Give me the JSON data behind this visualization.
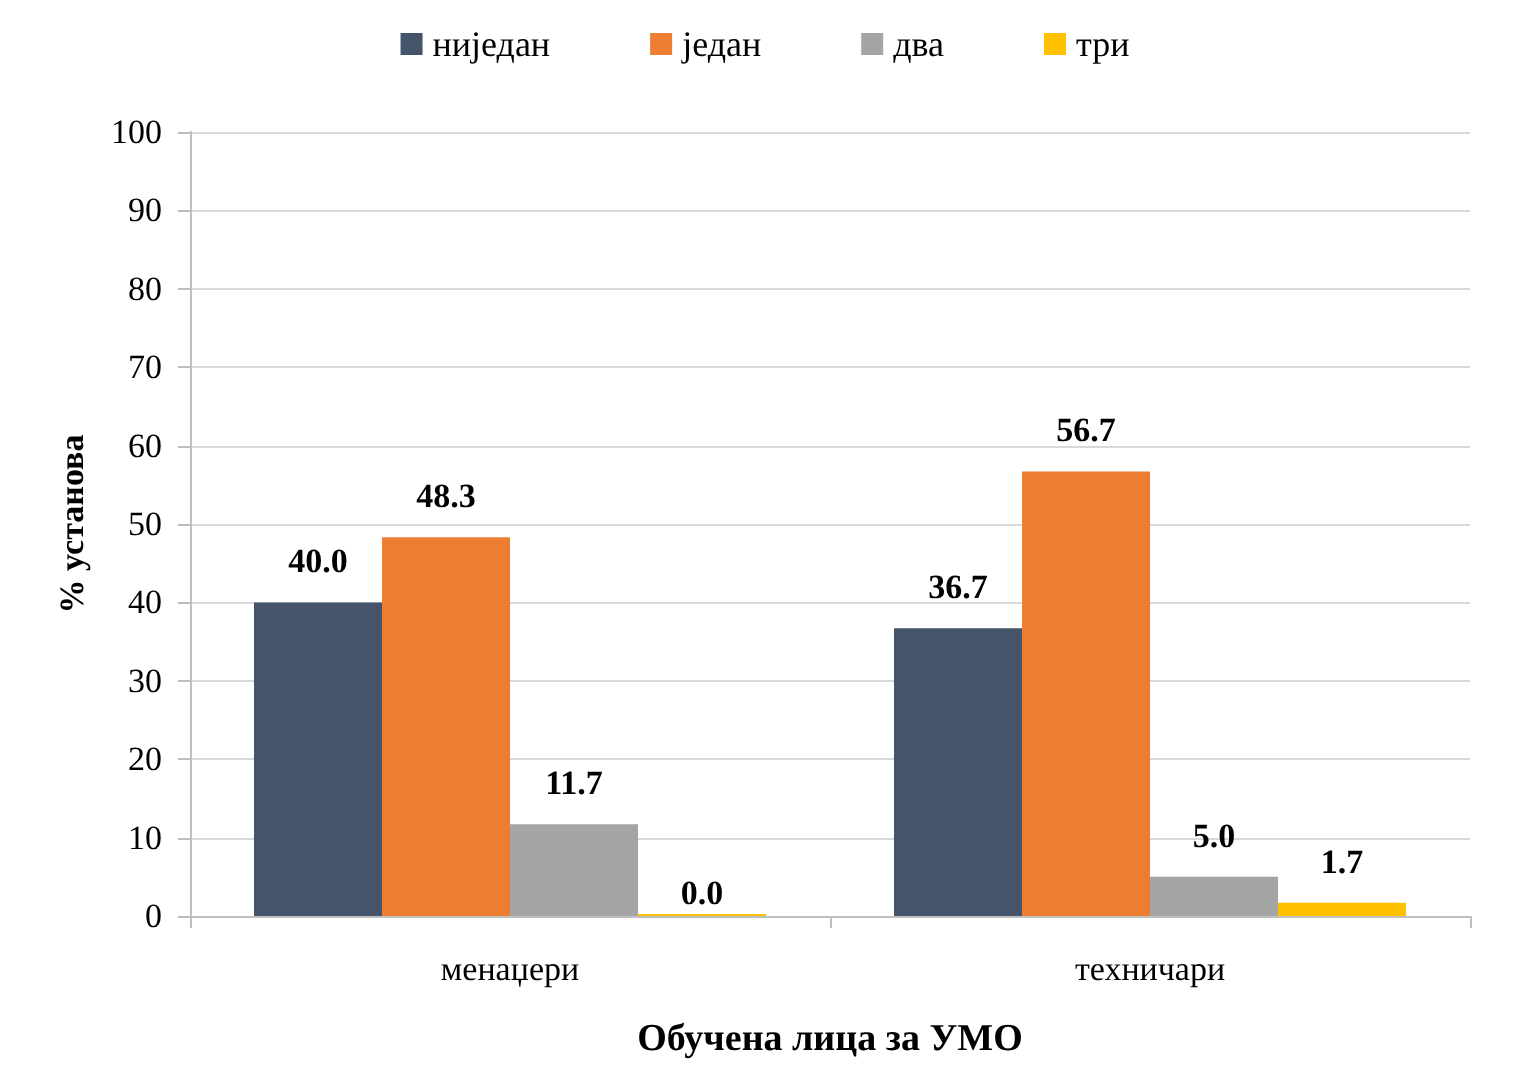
{
  "chart_data": {
    "type": "bar",
    "xlabel": "Обучена лица за УМО",
    "ylabel": "% установа",
    "categories": [
      "менаџери",
      "техничари"
    ],
    "series": [
      {
        "name": "ниједан",
        "color": "#44546a",
        "values": [
          40.0,
          36.7
        ],
        "value_labels": [
          "40.0",
          "36.7"
        ]
      },
      {
        "name": "један",
        "color": "#ed7d31",
        "values": [
          48.3,
          56.7
        ],
        "value_labels": [
          "48.3",
          "56.7"
        ]
      },
      {
        "name": "два",
        "color": "#a5a5a5",
        "values": [
          11.7,
          5.0
        ],
        "value_labels": [
          "11.7",
          "5.0"
        ]
      },
      {
        "name": "три",
        "color": "#ffc000",
        "values": [
          0.0,
          1.7
        ],
        "value_labels": [
          "0.0",
          "1.7"
        ]
      }
    ],
    "ylim": [
      0,
      100
    ],
    "yticks": [
      0,
      10,
      20,
      30,
      40,
      50,
      60,
      70,
      80,
      90,
      100
    ],
    "grid": "y",
    "legend": "top"
  }
}
